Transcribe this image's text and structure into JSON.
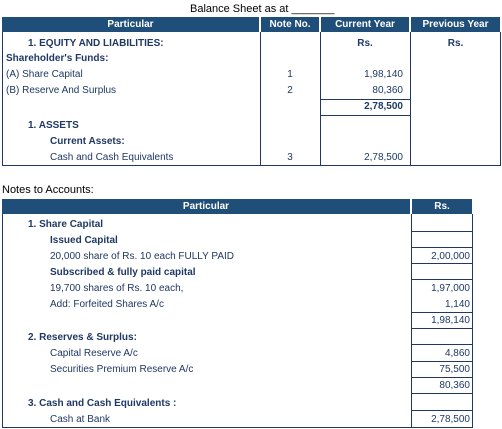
{
  "balance_sheet": {
    "title": "Balance Sheet as at _______",
    "headers": {
      "particular": "Particular",
      "note_no": "Note No.",
      "current_year": "Current Year",
      "previous_year": "Previous Year"
    },
    "currency_current": "Rs.",
    "currency_previous": "Rs.",
    "equity_heading": "1.  EQUITY AND LIABILITIES:",
    "shareholders_funds": "Shareholder's Funds:",
    "share_capital": {
      "label": "(A) Share Capital",
      "note": "1",
      "value": "1,98,140"
    },
    "reserve_surplus": {
      "label": "(B) Reserve And Surplus",
      "note": "2",
      "value": "80,360"
    },
    "total_liabilities": "2,78,500",
    "assets_heading": "1.  ASSETS",
    "current_assets": "Current Assets:",
    "cash": {
      "label": "Cash and Cash Equivalents",
      "note": "3",
      "value": "2,78,500"
    }
  },
  "notes": {
    "title": "Notes to Accounts:",
    "headers": {
      "particular": "Particular",
      "amount": "Rs."
    },
    "note1": {
      "heading": "1.  Share Capital",
      "issued_heading": "Issued Capital",
      "issued_line": "20,000 share of Rs. 10 each FULLY PAID",
      "issued_value": "2,00,000",
      "subscribed_heading": "Subscribed & fully paid capital",
      "subscribed_line": "19,700 shares of Rs. 10 each,",
      "subscribed_value": "1,97,000",
      "forfeited_line": "Add: Forfeited Shares A/c",
      "forfeited_value": "1,140",
      "total": "1,98,140"
    },
    "note2": {
      "heading": "2.  Reserves & Surplus:",
      "capital_reserve": {
        "label": "Capital Reserve A/c",
        "value": "4,860"
      },
      "securities_premium": {
        "label": "Securities Premium Reserve A/c",
        "value": "75,500"
      },
      "total": "80,360"
    },
    "note3": {
      "heading": "3.  Cash and Cash Equivalents :",
      "cash_at_bank": {
        "label": "Cash at Bank",
        "value": "2,78,500"
      }
    }
  }
}
